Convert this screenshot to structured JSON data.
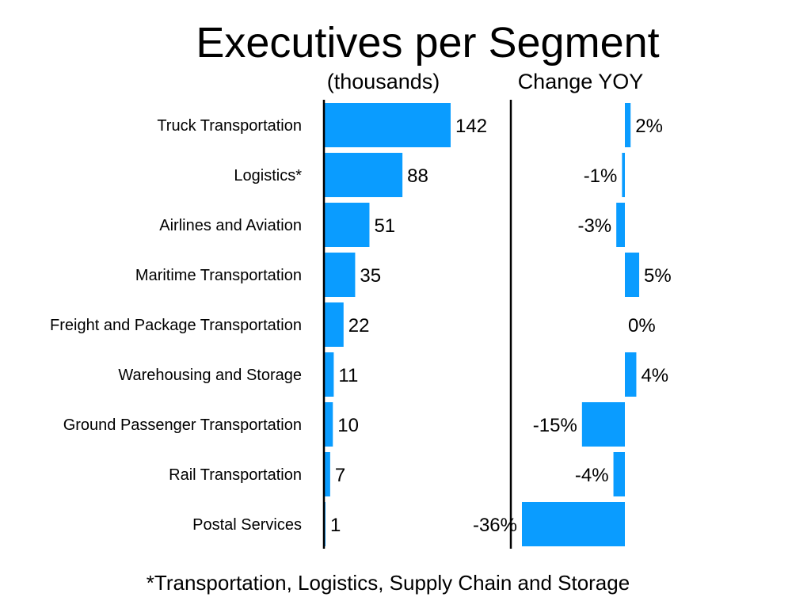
{
  "chart_data": [
    {
      "type": "bar",
      "orientation": "horizontal",
      "title": "Executives per Segment",
      "subtitle": "(thousands)",
      "categories": [
        "Truck Transportation",
        "Logistics*",
        "Airlines and Aviation",
        "Maritime Transportation",
        "Freight and Package Transportation",
        "Warehousing and Storage",
        "Ground Passenger Transportation",
        "Rail Transportation",
        "Postal Services"
      ],
      "values": [
        142,
        88,
        51,
        35,
        22,
        11,
        10,
        7,
        1
      ],
      "value_labels": [
        "142",
        "88",
        "51",
        "35",
        "22",
        "11",
        "10",
        "7",
        "1"
      ],
      "xlim": [
        0,
        142
      ],
      "grid": false,
      "bar_color": "#0a9cff"
    },
    {
      "type": "bar",
      "orientation": "horizontal",
      "subtitle": "Change YOY",
      "categories": [
        "Truck Transportation",
        "Logistics*",
        "Airlines and Aviation",
        "Maritime Transportation",
        "Freight and Package Transportation",
        "Warehousing and Storage",
        "Ground Passenger Transportation",
        "Rail Transportation",
        "Postal Services"
      ],
      "values": [
        2,
        -1,
        -3,
        5,
        0,
        4,
        -15,
        -4,
        -36
      ],
      "value_labels": [
        "2%",
        "-1%",
        "-3%",
        "5%",
        "0%",
        "4%",
        "-15%",
        "-4%",
        "-36%"
      ],
      "xlim": [
        -36,
        5
      ],
      "grid": false,
      "bar_color": "#0a9cff"
    }
  ],
  "footnote": "*Transportation, Logistics, Supply Chain and Storage",
  "colors": {
    "bar": "#0a9cff",
    "text": "#000000",
    "background": "#ffffff"
  }
}
